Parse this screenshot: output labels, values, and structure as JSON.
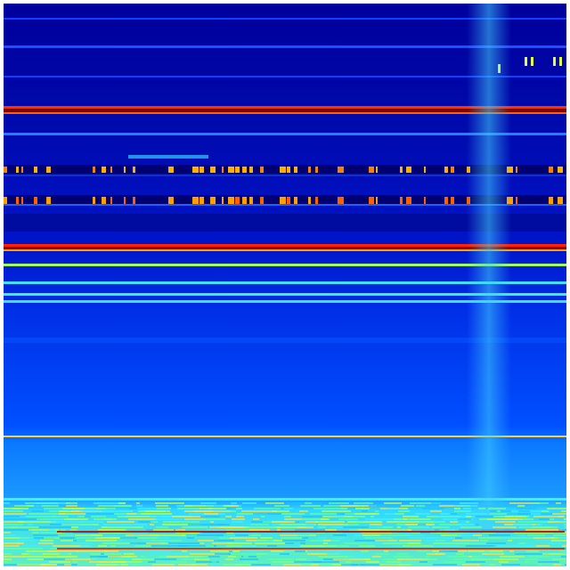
{
  "image": {
    "kind": "spectrogram-heatmap",
    "colormap": "jet",
    "colors": {
      "background_top": "#00009a",
      "mid_blue": "#0038f0",
      "light_blue": "#0a78ff",
      "cyan": "#30e0ff",
      "yellow_green": "#a0ff60",
      "orange": "#ff8000",
      "red": "#e00000",
      "dark_red": "#800000"
    }
  }
}
